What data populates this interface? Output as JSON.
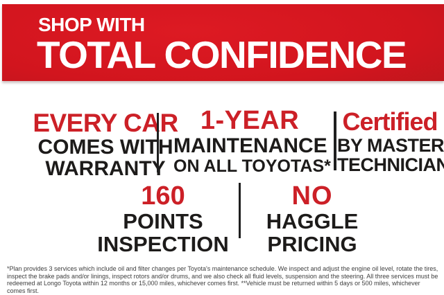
{
  "banner": {
    "kicker": "SHOP WITH",
    "headline": "TOTAL CONFIDENCE"
  },
  "benefits": {
    "row1": [
      {
        "highlight": "EVERY CAR",
        "line1": "COMES WITH",
        "line2": "WARRANTY"
      },
      {
        "highlight": "1-YEAR",
        "line1": "MAINTENANCE",
        "line2": "ON ALL TOYOTAS*"
      },
      {
        "highlight": "Certified",
        "line1": "BY MASTER",
        "line2": "TECHNICIAN"
      }
    ],
    "row2": [
      {
        "highlight": "160",
        "line1": "POINTS",
        "line2": "INSPECTION"
      },
      {
        "highlight": "NO",
        "line1": "HAGGLE",
        "line2": "PRICING"
      }
    ]
  },
  "disclaimer": "*Plan provides 3 services which include oil and filter changes per Toyota's maintenance schedule. We inspect and adjust the engine oil level, rotate the tires, inspect the brake pads and/or linings, inspect rotors and/or drums, and we also check all fluid levels, suspension and the steering.  All three services must be redeemed at Longo Toyota within 12 months or 15,000 miles, whichever comes first. **Vehicle must be returned within 5 days or 500 miles, whichever comes first.",
  "colors": {
    "accent_red": "#cc2027",
    "banner_red_bright": "#dd1a23",
    "banner_red_dark": "#92151a",
    "text_dark": "#1d1b1a",
    "divider_dark": "#1f1f1f",
    "banner_text": "#ffffff"
  }
}
